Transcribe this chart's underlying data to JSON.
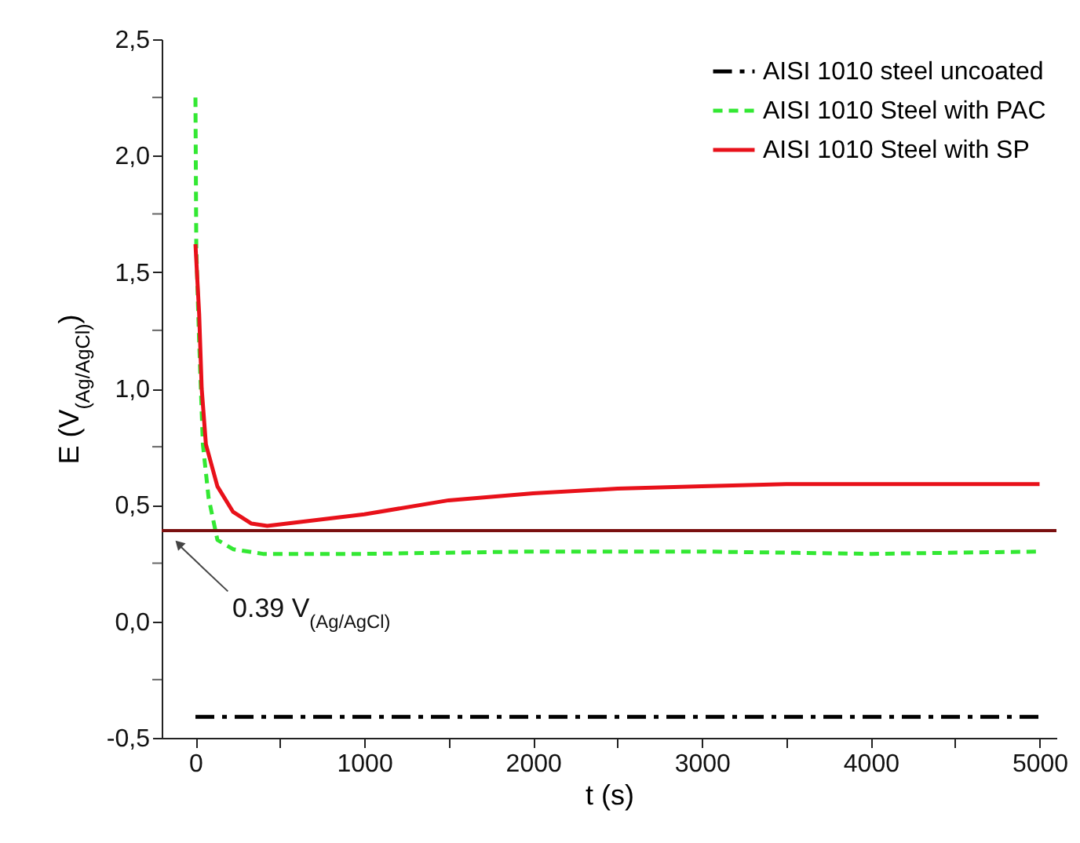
{
  "chart_data": {
    "type": "line",
    "xlabel": "t (s)",
    "ylabel": "E (V$_{(Ag/AgCl)}$)",
    "xlim": [
      -200,
      5100
    ],
    "ylim": [
      -0.5,
      2.5
    ],
    "xticks": [
      0,
      {
        "value": 500,
        "label": null
      },
      1000,
      {
        "value": 1500,
        "label": null
      },
      2000,
      {
        "value": 2500,
        "label": null
      },
      3000,
      {
        "value": 3500,
        "label": null
      },
      4000,
      {
        "value": 4500,
        "label": null
      },
      5000
    ],
    "yticks": [
      {
        "value": -0.5,
        "label": "-0,5"
      },
      {
        "value": -0.25,
        "label": null
      },
      {
        "value": 0,
        "label": "0,0"
      },
      {
        "value": 0.25,
        "label": null
      },
      {
        "value": 0.5,
        "label": "0,5"
      },
      {
        "value": 0.75,
        "label": null
      },
      {
        "value": 1,
        "label": "1,0"
      },
      {
        "value": 1.25,
        "label": null
      },
      {
        "value": 1.5,
        "label": "1,5"
      },
      {
        "value": 1.75,
        "label": null
      },
      {
        "value": 2,
        "label": "2,0"
      },
      {
        "value": 2.25,
        "label": null
      },
      {
        "value": 2.5,
        "label": "2,5"
      }
    ],
    "legend": "top right",
    "grid": false,
    "marker": "none",
    "series": [
      {
        "name": "AISI 1010 steel uncoated",
        "color": "#000000",
        "line_style": "dashdot",
        "x": [
          0,
          1000,
          2000,
          3000,
          4000,
          5000
        ],
        "values": [
          -0.41,
          -0.41,
          -0.41,
          -0.41,
          -0.41,
          -0.41
        ]
      },
      {
        "name": "AISI 1010 Steel with PAC",
        "color": "#33e833",
        "line_style": "dashed",
        "x": [
          0,
          5,
          22,
          44,
          78,
          130,
          223,
          400,
          1000,
          2000,
          3000,
          4000,
          5000
        ],
        "values": [
          2.25,
          1.6,
          1.2,
          0.76,
          0.53,
          0.35,
          0.31,
          0.29,
          0.29,
          0.3,
          0.3,
          0.29,
          0.3
        ]
      },
      {
        "name": "AISI 1010 Steel with SP",
        "color": "#e8111a",
        "line_style": "solid",
        "x": [
          0,
          22,
          37,
          62,
          130,
          223,
          332,
          425,
          1000,
          1500,
          2000,
          2500,
          3000,
          3500,
          4000,
          5000
        ],
        "values": [
          1.62,
          1.32,
          1.0,
          0.76,
          0.58,
          0.47,
          0.42,
          0.41,
          0.46,
          0.52,
          0.55,
          0.57,
          0.58,
          0.59,
          0.59,
          0.59
        ]
      }
    ],
    "ref_lines": [
      {
        "axis": "y",
        "value": 0.39,
        "label": "0.39 V$_{(Ag/AgCl)}$",
        "color": "#7a1010"
      }
    ]
  }
}
